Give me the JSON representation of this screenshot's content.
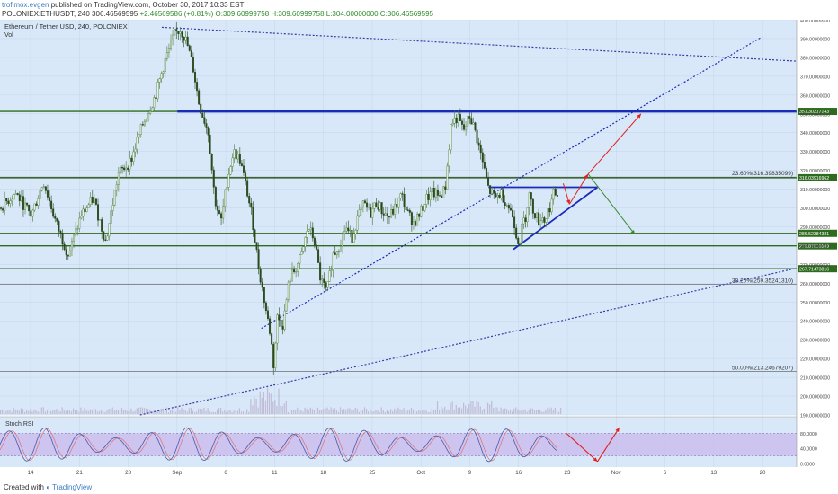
{
  "header": {
    "author": "trofimox.evgen",
    "published": "published on TradingView.com, October 30, 2017 10:33 EST",
    "symbol": "POLONIEX:ETHUSDT, 240",
    "last": "306.46569595",
    "change": "+2.46569586 (+0.81%)",
    "ohlc": "O:309.60999758 H:309.60999758 L:304.00000000 C:306.46569595"
  },
  "chart_data": {
    "type": "candlestick",
    "title": "Ethereum / Tether USD, 240, POLONIEX",
    "volume_label": "Vol",
    "y_axis": {
      "min": 190,
      "max": 400,
      "step": 10,
      "decimals": 8
    },
    "x_ticks": [
      "14",
      "21",
      "28",
      "Sep",
      "6",
      "11",
      "18",
      "25",
      "Oct",
      "9",
      "16",
      "23",
      "Nov",
      "6",
      "13",
      "20"
    ],
    "horizontal_levels": [
      {
        "label": "351.30317143",
        "value": 351.3,
        "color": "#2e6b1e"
      },
      {
        "label": "316.03916962",
        "value": 316.04,
        "color": "#2e6b1e"
      },
      {
        "label": "286.52384381",
        "value": 286.52,
        "color": "#2e6b1e"
      },
      {
        "label": "279.87616509",
        "value": 279.88,
        "color": "#2e6b1e"
      },
      {
        "label": "267.71473816",
        "value": 267.71,
        "color": "#2e6b1e"
      }
    ],
    "fib_levels": [
      {
        "label": "23.60%(316.39835099)",
        "value": 316.4
      },
      {
        "label": "38.20%(259.35241310)",
        "value": 259.35
      },
      {
        "label": "50.00%(213.24679207)",
        "value": 213.25
      }
    ],
    "price_path": [
      [
        0,
        300
      ],
      [
        5,
        308
      ],
      [
        10,
        296
      ],
      [
        14,
        314
      ],
      [
        18,
        292
      ],
      [
        22,
        275
      ],
      [
        26,
        296
      ],
      [
        30,
        305
      ],
      [
        34,
        282
      ],
      [
        38,
        318
      ],
      [
        42,
        325
      ],
      [
        46,
        345
      ],
      [
        50,
        360
      ],
      [
        53,
        378
      ],
      [
        56,
        392
      ],
      [
        58,
        395
      ],
      [
        60,
        388
      ],
      [
        62,
        375
      ],
      [
        64,
        355
      ],
      [
        67,
        340
      ],
      [
        69,
        305
      ],
      [
        71,
        292
      ],
      [
        73,
        315
      ],
      [
        75,
        330
      ],
      [
        77,
        326
      ],
      [
        79,
        312
      ],
      [
        81,
        295
      ],
      [
        83,
        270
      ],
      [
        85,
        250
      ],
      [
        87,
        232
      ],
      [
        88,
        215
      ],
      [
        89,
        242
      ],
      [
        91,
        238
      ],
      [
        93,
        262
      ],
      [
        95,
        268
      ],
      [
        97,
        275
      ],
      [
        99,
        290
      ],
      [
        101,
        283
      ],
      [
        103,
        262
      ],
      [
        105,
        255
      ],
      [
        107,
        275
      ],
      [
        109,
        280
      ],
      [
        111,
        290
      ],
      [
        113,
        284
      ],
      [
        115,
        295
      ],
      [
        117,
        302
      ],
      [
        119,
        297
      ],
      [
        121,
        303
      ],
      [
        123,
        298
      ],
      [
        125,
        295
      ],
      [
        127,
        300
      ],
      [
        129,
        307
      ],
      [
        131,
        297
      ],
      [
        133,
        292
      ],
      [
        135,
        297
      ],
      [
        137,
        305
      ],
      [
        139,
        308
      ],
      [
        141,
        306
      ],
      [
        143,
        310
      ],
      [
        145,
        345
      ],
      [
        147,
        348
      ],
      [
        149,
        341
      ],
      [
        151,
        349
      ],
      [
        153,
        339
      ],
      [
        155,
        325
      ],
      [
        157,
        310
      ],
      [
        159,
        305
      ],
      [
        161,
        308
      ],
      [
        163,
        302
      ],
      [
        165,
        295
      ],
      [
        166,
        285
      ],
      [
        167,
        282
      ],
      [
        168,
        292
      ],
      [
        169,
        296
      ],
      [
        170,
        308
      ],
      [
        171,
        300
      ],
      [
        172,
        297
      ],
      [
        173,
        293
      ],
      [
        174,
        296
      ],
      [
        175,
        293
      ],
      [
        176,
        298
      ],
      [
        177,
        302
      ],
      [
        178,
        308
      ],
      [
        179,
        306.5
      ]
    ],
    "trend_lines": [
      {
        "name": "rising support",
        "from": [
          84,
          236
        ],
        "to": [
          245,
          391
        ],
        "style": "dotted"
      },
      {
        "name": "descending resistance",
        "from": [
          52,
          396
        ],
        "to": [
          256,
          378
        ],
        "style": "dotted"
      },
      {
        "name": "long-term support",
        "from": [
          45,
          190
        ],
        "to": [
          256,
          268
        ],
        "style": "dotted"
      },
      {
        "name": "triangle top",
        "from": [
          157,
          311
        ],
        "to": [
          192,
          311
        ],
        "style": "solid"
      },
      {
        "name": "triangle bottom",
        "from": [
          165,
          278
        ],
        "to": [
          192,
          311
        ],
        "style": "solid"
      },
      {
        "name": "resistance",
        "from": [
          57,
          351.3
        ],
        "to": [
          256,
          351.3
        ],
        "style": "solid"
      }
    ],
    "projections": [
      {
        "from": [
          181,
          313
        ],
        "to": [
          183,
          302
        ],
        "color": "#e02020"
      },
      {
        "from": [
          183,
          302
        ],
        "to": [
          189,
          318
        ],
        "color": "#e02020"
      },
      {
        "from": [
          189,
          318
        ],
        "to": [
          206,
          350
        ],
        "color": "#e02020"
      },
      {
        "from": [
          189,
          318
        ],
        "to": [
          204,
          286
        ],
        "color": "#3a8a2a"
      }
    ],
    "stoch_rsi": {
      "label": "Stoch RSI",
      "levels": [
        80,
        20
      ],
      "ticks": [
        "80.0000",
        "40.0000",
        "0.0000"
      ],
      "projection": [
        [
          182,
          80
        ],
        [
          192,
          5
        ],
        [
          199,
          95
        ]
      ]
    }
  },
  "footer": {
    "created_with": "Created with",
    "brand": "TradingView"
  },
  "colors": {
    "bg": "#d8e8f8",
    "up": "#4a7a3c",
    "down": "#2a4a1e",
    "level": "#2e6b1e",
    "blue": "#1a2bb8",
    "rsi_fill": "#c9b8ec",
    "rsi_k": "#4a5aa8",
    "rsi_d": "#e07070"
  }
}
